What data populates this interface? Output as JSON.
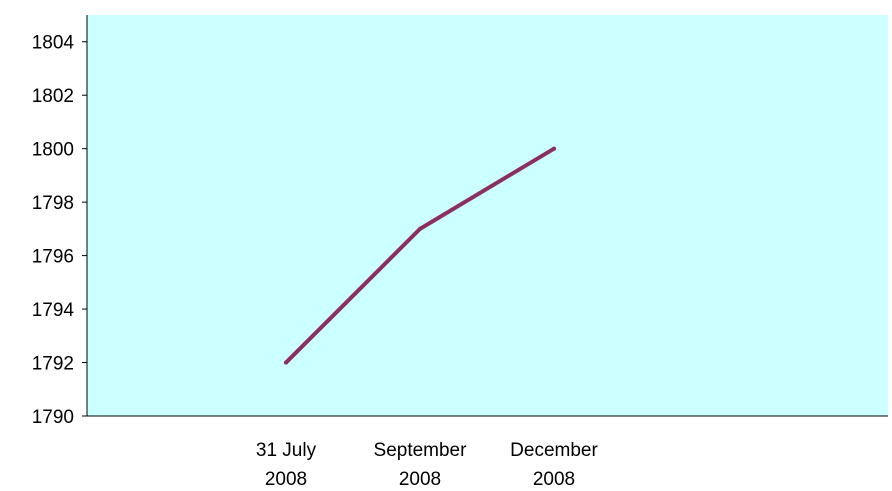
{
  "chart_data": {
    "type": "line",
    "title": "",
    "xlabel": "",
    "ylabel": "",
    "categories": [
      [
        "31 July",
        "2008"
      ],
      [
        "September",
        "2008"
      ],
      [
        "December",
        "2008"
      ]
    ],
    "series": [
      {
        "values": [
          1792,
          1797,
          1800
        ],
        "color": "#8B2F5E"
      }
    ],
    "ylim": [
      1790,
      1805
    ],
    "yticks": [
      1790,
      1792,
      1794,
      1796,
      1798,
      1800,
      1802,
      1804
    ],
    "grid": false,
    "legend": "none",
    "plot_background": "#CCFFFF"
  }
}
